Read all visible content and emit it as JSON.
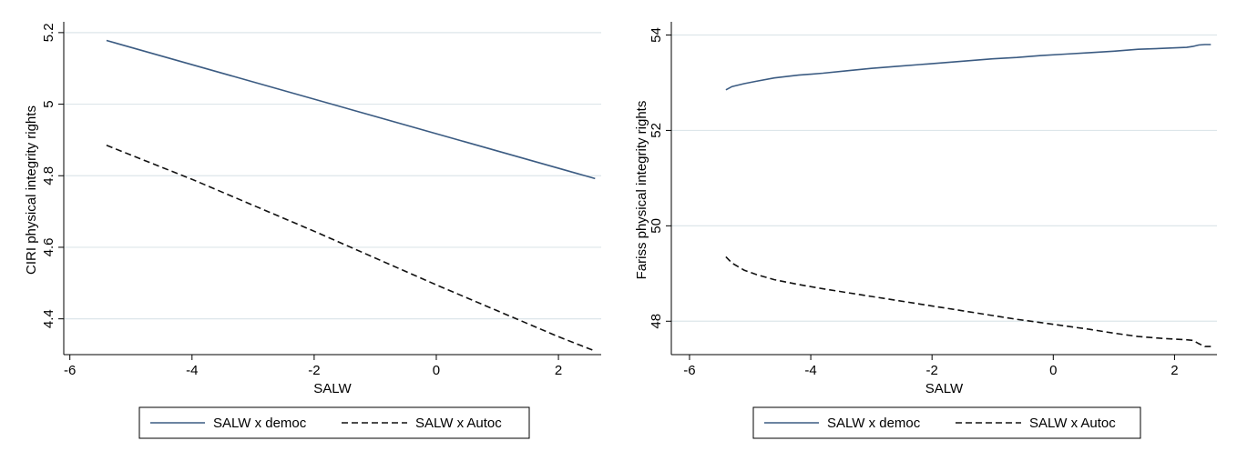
{
  "colors": {
    "democ": "#3b5b82",
    "autoc": "#111111",
    "grid": "#dde6ea",
    "axis": "#000000"
  },
  "chart_data": [
    {
      "type": "line",
      "xlabel": "SALW",
      "ylabel": "CIRI physical integrity rights",
      "xlim": [
        -6.1,
        2.7
      ],
      "ylim": [
        4.3,
        5.22
      ],
      "xticks": [
        -6,
        -4,
        -2,
        0,
        2
      ],
      "xtick_labels": [
        "-6",
        "-4",
        "-2",
        "0",
        "2"
      ],
      "yticks": [
        4.4,
        4.6,
        4.8,
        5.0,
        5.2
      ],
      "ytick_labels": [
        "4.4",
        "4.6",
        "4.8",
        "5",
        "5.2"
      ],
      "legend": "bottom",
      "series": [
        {
          "name": "SALW x democ",
          "style": "solid",
          "x": [
            -5.4,
            2.6
          ],
          "y": [
            5.178,
            4.792
          ]
        },
        {
          "name": "SALW x Autoc",
          "style": "dashed",
          "x": [
            -5.4,
            -4,
            -2,
            0,
            2,
            2.6
          ],
          "y": [
            4.885,
            4.79,
            4.645,
            4.495,
            4.35,
            4.31
          ]
        }
      ]
    },
    {
      "type": "line",
      "xlabel": "SALW",
      "ylabel": "Fariss physical integrity rights",
      "xlim": [
        -6.3,
        2.7
      ],
      "ylim": [
        47.3,
        54.2
      ],
      "xticks": [
        -6,
        -4,
        -2,
        0,
        2
      ],
      "xtick_labels": [
        "-6",
        "-4",
        "-2",
        "0",
        "2"
      ],
      "yticks": [
        48,
        50,
        52,
        54
      ],
      "ytick_labels": [
        "48",
        "50",
        "52",
        "54"
      ],
      "legend": "bottom",
      "series": [
        {
          "name": "SALW x democ",
          "style": "solid",
          "x": [
            -5.4,
            -5.3,
            -5.1,
            -4.9,
            -4.6,
            -4.2,
            -3.8,
            -3.4,
            -3.0,
            -2.6,
            -2.2,
            -1.8,
            -1.4,
            -1.0,
            -0.6,
            -0.2,
            0.2,
            0.6,
            1.0,
            1.4,
            1.8,
            2.2,
            2.3,
            2.4,
            2.5,
            2.6
          ],
          "y": [
            52.85,
            52.92,
            52.98,
            53.03,
            53.1,
            53.16,
            53.2,
            53.25,
            53.3,
            53.34,
            53.38,
            53.42,
            53.46,
            53.5,
            53.53,
            53.57,
            53.6,
            53.63,
            53.66,
            53.7,
            53.72,
            53.74,
            53.76,
            53.79,
            53.8,
            53.8
          ]
        },
        {
          "name": "SALW x Autoc",
          "style": "dashed",
          "x": [
            -5.4,
            -5.3,
            -5.1,
            -4.9,
            -4.6,
            -4.2,
            -3.8,
            -3.4,
            -3.0,
            -2.6,
            -2.2,
            -1.8,
            -1.4,
            -1.0,
            -0.6,
            -0.2,
            0.2,
            0.6,
            1.0,
            1.4,
            1.8,
            2.2,
            2.3,
            2.4,
            2.5,
            2.6
          ],
          "y": [
            49.35,
            49.22,
            49.07,
            48.98,
            48.87,
            48.77,
            48.68,
            48.6,
            48.52,
            48.44,
            48.36,
            48.28,
            48.2,
            48.12,
            48.04,
            47.97,
            47.9,
            47.83,
            47.75,
            47.68,
            47.64,
            47.61,
            47.6,
            47.53,
            47.47,
            47.47
          ]
        }
      ]
    }
  ]
}
